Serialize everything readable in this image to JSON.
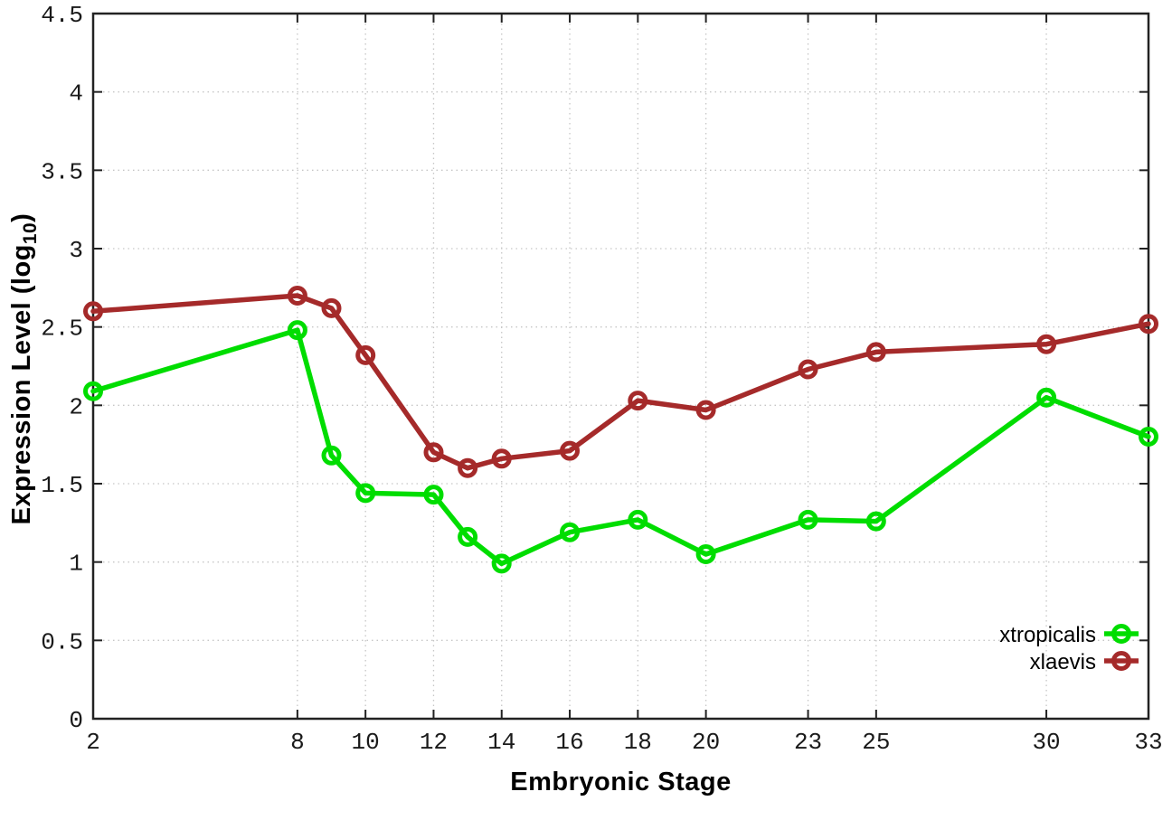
{
  "chart_data": {
    "type": "line",
    "title": "",
    "xlabel": "Embryonic Stage",
    "ylabel": {
      "pre": "Expression Level (log",
      "sub": "10",
      "post": ")"
    },
    "x": [
      2,
      8,
      9,
      10,
      12,
      13,
      14,
      16,
      18,
      20,
      23,
      25,
      30,
      33
    ],
    "series": [
      {
        "name": "xtropicalis",
        "color": "#00dd00",
        "values": [
          2.09,
          2.48,
          1.68,
          1.44,
          1.43,
          1.16,
          0.99,
          1.19,
          1.27,
          1.05,
          1.27,
          1.26,
          2.05,
          1.8
        ]
      },
      {
        "name": "xlaevis",
        "color": "#a52a2a",
        "values": [
          2.6,
          2.7,
          2.62,
          2.32,
          1.7,
          1.6,
          1.66,
          1.71,
          2.03,
          1.97,
          2.23,
          2.34,
          2.39,
          2.52
        ]
      }
    ],
    "xticks": [
      2,
      8,
      10,
      12,
      14,
      16,
      18,
      20,
      23,
      25,
      30,
      33
    ],
    "yticks": [
      0,
      0.5,
      1,
      1.5,
      2,
      2.5,
      3,
      3.5,
      4,
      4.5
    ],
    "xlim": [
      2,
      33
    ],
    "ylim": [
      0,
      4.5
    ],
    "grid": true,
    "legend_position": "bottom-right",
    "colors": {
      "grid": "#c6c6c6",
      "border": "#222222",
      "tick_text": "#1a1a1a"
    }
  }
}
